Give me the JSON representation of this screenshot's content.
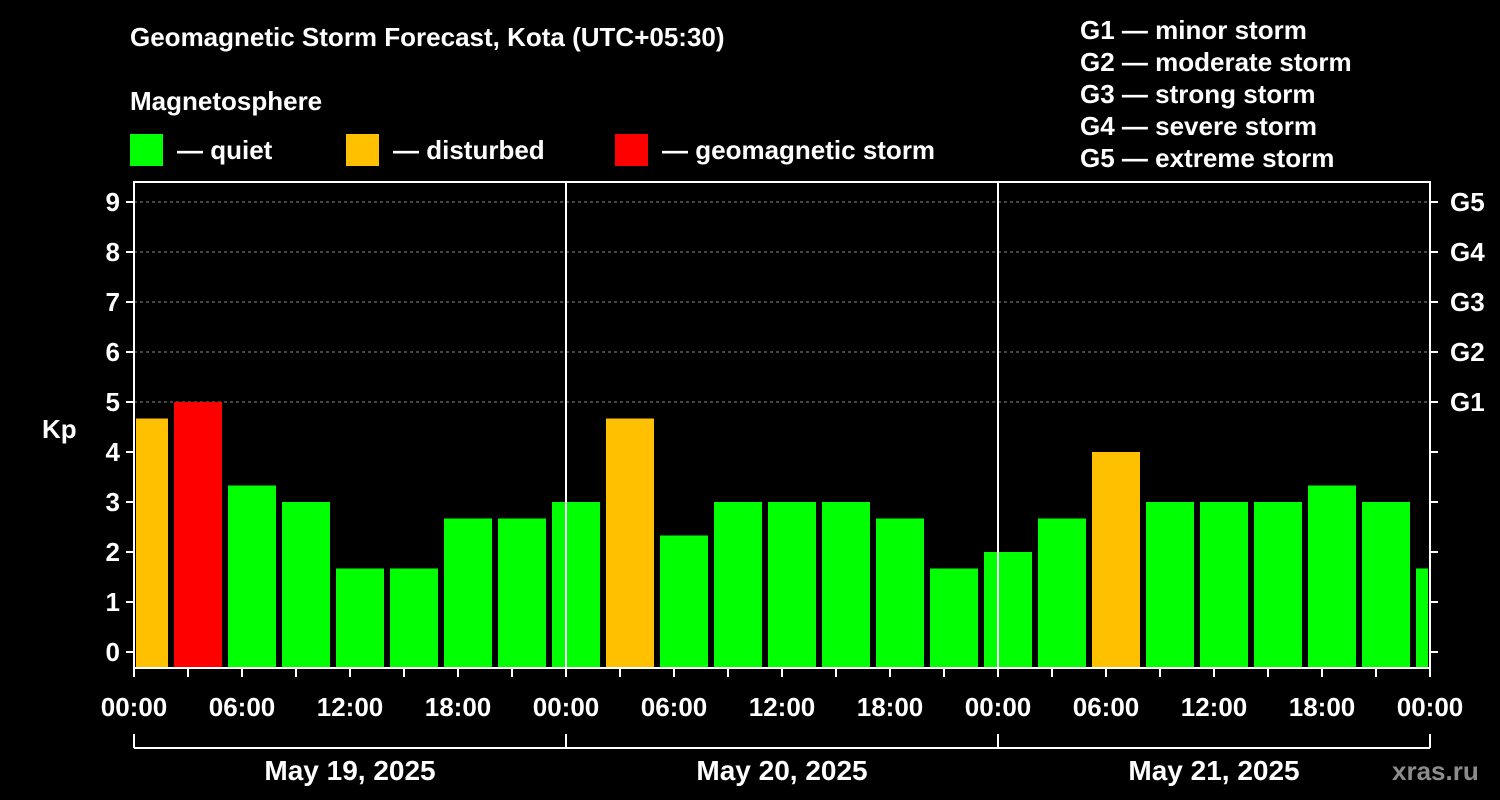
{
  "title": "Geomagnetic Storm Forecast, Kota (UTC+05:30)",
  "subtitle": "Magnetosphere",
  "legend": [
    {
      "label": "— quiet",
      "color": "#00ff00"
    },
    {
      "label": "— disturbed",
      "color": "#ffc000"
    },
    {
      "label": "— geomagnetic storm",
      "color": "#ff0000"
    }
  ],
  "storm_scale": [
    "G1 — minor storm",
    "G2 — moderate storm",
    "G3 — strong storm",
    "G4 — severe storm",
    "G5 — extreme storm"
  ],
  "watermark": "xras.ru",
  "chart_data": {
    "type": "bar",
    "ylabel": "Kp",
    "ylim": [
      0,
      9
    ],
    "y_ticks": [
      "0",
      "1",
      "2",
      "3",
      "4",
      "5",
      "6",
      "7",
      "8",
      "9"
    ],
    "right_ticks": [
      {
        "kp": 5,
        "label": "G1"
      },
      {
        "kp": 6,
        "label": "G2"
      },
      {
        "kp": 7,
        "label": "G3"
      },
      {
        "kp": 8,
        "label": "G4"
      },
      {
        "kp": 9,
        "label": "G5"
      }
    ],
    "x_tick_labels": [
      "00:00",
      "06:00",
      "12:00",
      "18:00",
      "00:00",
      "06:00",
      "12:00",
      "18:00",
      "00:00",
      "06:00",
      "12:00",
      "18:00",
      "00:00"
    ],
    "days": [
      "May 19, 2025",
      "May 20, 2025",
      "May 21, 2025"
    ],
    "bin_hours": 3,
    "first_bin_visible_fraction": 0.6,
    "last_bin_visible_fraction": 0.2,
    "values": [
      4.67,
      5.0,
      3.33,
      3.0,
      1.67,
      1.67,
      2.67,
      2.67,
      3.0,
      4.67,
      2.33,
      3.0,
      3.0,
      3.0,
      2.67,
      1.67,
      2.0,
      2.67,
      4.0,
      3.0,
      3.0,
      3.0,
      3.33,
      3.0,
      1.67
    ],
    "levels": [
      "disturbed",
      "storm",
      "quiet",
      "quiet",
      "quiet",
      "quiet",
      "quiet",
      "quiet",
      "quiet",
      "disturbed",
      "quiet",
      "quiet",
      "quiet",
      "quiet",
      "quiet",
      "quiet",
      "quiet",
      "quiet",
      "disturbed",
      "quiet",
      "quiet",
      "quiet",
      "quiet",
      "quiet",
      "quiet"
    ],
    "colors": {
      "quiet": "#00ff00",
      "disturbed": "#ffc000",
      "storm": "#ff0000"
    }
  }
}
